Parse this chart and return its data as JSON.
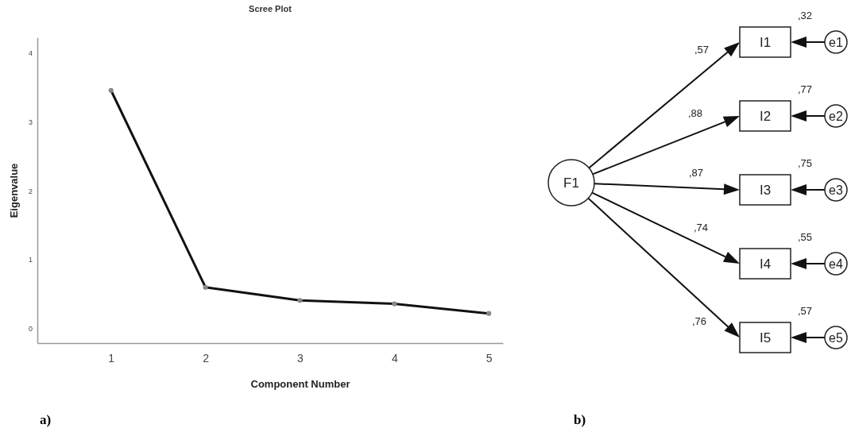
{
  "chart_data": [
    {
      "type": "line",
      "title": "Scree Plot",
      "xlabel": "Component Number",
      "ylabel": "Eigenvalue",
      "x": [
        1,
        2,
        3,
        4,
        5
      ],
      "series": [
        {
          "color": "#111111",
          "values": [
            3.46,
            0.6,
            0.41,
            0.36,
            0.22
          ]
        }
      ],
      "xlim": [
        0.22,
        5.15
      ],
      "xticks": [
        1,
        2,
        3,
        4,
        5
      ],
      "ylim": [
        -0.21,
        4.23
      ],
      "yticks": [
        0,
        1,
        2,
        3,
        4
      ],
      "marker": "circle",
      "line_style": "solid",
      "annotations": [
        "a)"
      ]
    },
    {
      "type": "other",
      "annotations": [
        "F1",
        "I1",
        "I2",
        "I3",
        "I4",
        "I5",
        "e1",
        "e2",
        "e3",
        "e4",
        "e5",
        ",57",
        ",88",
        ",87",
        ",74",
        ",76",
        ",32",
        ",77",
        ",75",
        ",55",
        ",57",
        "b)"
      ]
    }
  ]
}
